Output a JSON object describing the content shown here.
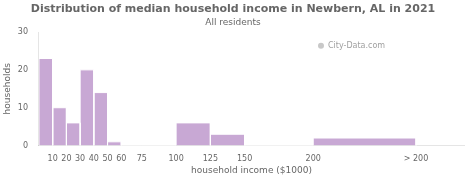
{
  "chart_data": {
    "type": "histogram",
    "title": "Distribution of median household income in Newbern, AL in 2021",
    "subtitle": "All residents",
    "xlabel": "household income ($1000)",
    "ylabel": "households",
    "annotations": [
      "City-Data.com"
    ],
    "bins": [
      0,
      10,
      20,
      30,
      40,
      50,
      60,
      75,
      100,
      125,
      150,
      200,
      275
    ],
    "values": [
      23,
      10,
      6,
      20,
      14,
      1,
      0,
      0,
      6,
      3,
      0,
      2
    ],
    "color": "#c8a8d4",
    "xlim": [
      0,
      310
    ],
    "xticks": [
      10,
      20,
      30,
      40,
      50,
      60,
      75,
      100,
      125,
      150,
      200,
      {
        "value": 275,
        "label": "> 200"
      }
    ],
    "ylim": [
      0,
      30
    ],
    "yticks": [
      0,
      10,
      20,
      30
    ],
    "grid": false
  }
}
